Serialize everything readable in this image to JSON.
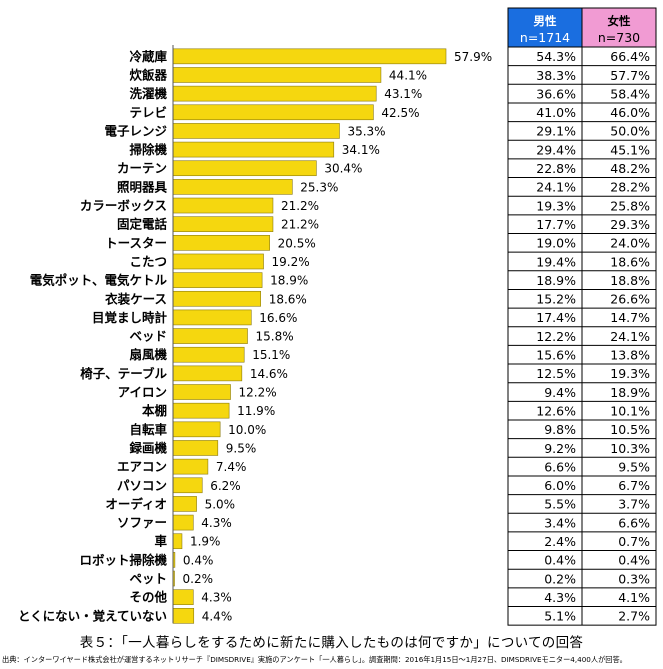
{
  "chart_data": {
    "type": "bar",
    "orientation": "horizontal",
    "categories": [
      "冷蔵庫",
      "炊飯器",
      "洗濯機",
      "テレビ",
      "電子レンジ",
      "掃除機",
      "カーテン",
      "照明器具",
      "カラーボックス",
      "固定電話",
      "トースター",
      "こたつ",
      "電気ポット、電気ケトル",
      "衣装ケース",
      "目覚まし時計",
      "ベッド",
      "扇風機",
      "椅子、テーブル",
      "アイロン",
      "本棚",
      "自転車",
      "録画機",
      "エアコン",
      "パソコン",
      "オーディオ",
      "ソファー",
      "車",
      "ロボット掃除機",
      "ペット",
      "その他",
      "とくにない・覚えていない"
    ],
    "values": [
      57.9,
      44.1,
      43.1,
      42.5,
      35.3,
      34.1,
      30.4,
      25.3,
      21.2,
      21.2,
      20.5,
      19.2,
      18.9,
      18.6,
      16.6,
      15.8,
      15.1,
      14.6,
      12.2,
      11.9,
      10.0,
      9.5,
      7.4,
      6.2,
      5.0,
      4.3,
      1.9,
      0.4,
      0.2,
      4.3,
      4.4
    ],
    "value_labels": [
      "57.9%",
      "44.1%",
      "43.1%",
      "42.5%",
      "35.3%",
      "34.1%",
      "30.4%",
      "25.3%",
      "21.2%",
      "21.2%",
      "20.5%",
      "19.2%",
      "18.9%",
      "18.6%",
      "16.6%",
      "15.8%",
      "15.1%",
      "14.6%",
      "12.2%",
      "11.9%",
      "10.0%",
      "9.5%",
      "7.4%",
      "6.2%",
      "5.0%",
      "4.3%",
      "1.9%",
      "0.4%",
      "0.2%",
      "4.3%",
      "4.4%"
    ],
    "unit": "%",
    "bar_color": "#f5d70f",
    "bar_stroke": "#8a7a10"
  },
  "table": {
    "headers": [
      {
        "label": "男性",
        "n": "n=1714",
        "color": "#1a6ee0"
      },
      {
        "label": "女性",
        "n": "n=730",
        "color": "#f19bd3"
      }
    ],
    "male": [
      "54.3%",
      "38.3%",
      "36.6%",
      "41.0%",
      "29.1%",
      "29.4%",
      "22.8%",
      "24.1%",
      "19.3%",
      "17.7%",
      "19.0%",
      "19.4%",
      "18.9%",
      "15.2%",
      "17.4%",
      "12.2%",
      "15.6%",
      "12.5%",
      "9.4%",
      "12.6%",
      "9.8%",
      "9.2%",
      "6.6%",
      "6.0%",
      "5.5%",
      "3.4%",
      "2.4%",
      "0.4%",
      "0.2%",
      "4.3%",
      "5.1%"
    ],
    "female": [
      "66.4%",
      "57.7%",
      "58.4%",
      "46.0%",
      "50.0%",
      "45.1%",
      "48.2%",
      "28.2%",
      "25.8%",
      "29.3%",
      "24.0%",
      "18.6%",
      "18.8%",
      "26.6%",
      "14.7%",
      "24.1%",
      "13.8%",
      "19.3%",
      "18.9%",
      "10.1%",
      "10.5%",
      "10.3%",
      "9.5%",
      "6.7%",
      "3.7%",
      "6.6%",
      "0.7%",
      "0.4%",
      "0.3%",
      "4.1%",
      "2.7%"
    ]
  },
  "caption": "表５：「一人暮らしをするために新たに購入したものは何ですか」についての回答",
  "source": "出典：インターワイヤード株式会社が運営するネットリサーチ『DIMSDRIVE』実施のアンケート「一人暮らし」。調査期間：2016年1月15日～1月27日、DIMSDRIVEモニター4,400人が回答。"
}
